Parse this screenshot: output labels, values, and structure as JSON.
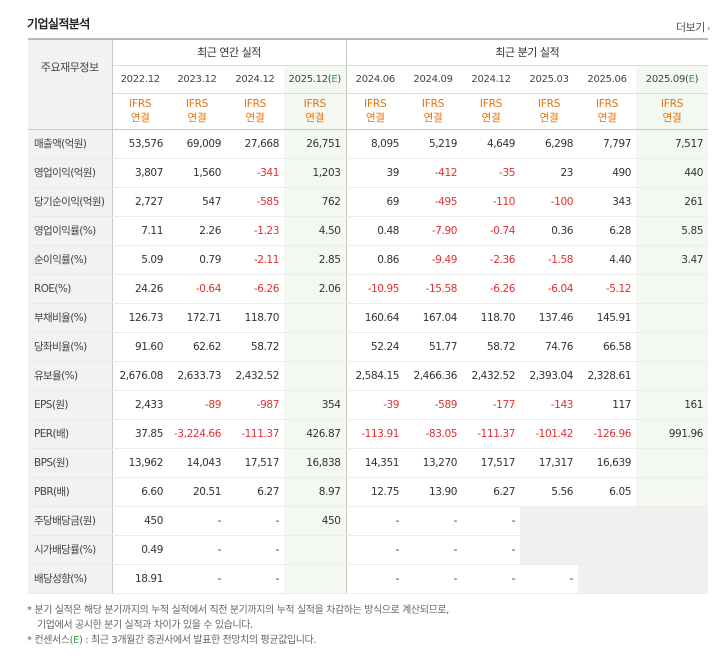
{
  "section_title": "기업실적분석",
  "more_label": "더보기",
  "more_arrow": "›",
  "header": {
    "row_head": "주요재무정보",
    "annual_group": "최근 연간 실적",
    "quarter_group": "최근 분기 실적"
  },
  "periods": [
    {
      "label": "2022.12",
      "est": false,
      "ifrs": "IFRS",
      "basis": "연결"
    },
    {
      "label": "2023.12",
      "est": false,
      "ifrs": "IFRS",
      "basis": "연결"
    },
    {
      "label": "2024.12",
      "est": false,
      "ifrs": "IFRS",
      "basis": "연결"
    },
    {
      "label": "2025.12(E)",
      "est": true,
      "ifrs": "IFRS",
      "basis": "연결"
    },
    {
      "label": "2024.06",
      "est": false,
      "ifrs": "IFRS",
      "basis": "연결"
    },
    {
      "label": "2024.09",
      "est": false,
      "ifrs": "IFRS",
      "basis": "연결"
    },
    {
      "label": "2024.12",
      "est": false,
      "ifrs": "IFRS",
      "basis": "연결"
    },
    {
      "label": "2025.03",
      "est": false,
      "ifrs": "IFRS",
      "basis": "연결"
    },
    {
      "label": "2025.06",
      "est": false,
      "ifrs": "IFRS",
      "basis": "연결"
    },
    {
      "label": "2025.09(E)",
      "est": true,
      "ifrs": "IFRS",
      "basis": "연결"
    }
  ],
  "rows": [
    {
      "label": "매출액(억원)",
      "group_start": true,
      "values": [
        "53,576",
        "69,009",
        "27,668",
        "26,751",
        "8,095",
        "5,219",
        "4,649",
        "6,298",
        "7,797",
        "7,517"
      ]
    },
    {
      "label": "영업이익(억원)",
      "group_start": false,
      "values": [
        "3,807",
        "1,560",
        "-341",
        "1,203",
        "39",
        "-412",
        "-35",
        "23",
        "490",
        "440"
      ]
    },
    {
      "label": "당기순이익(억원)",
      "group_start": false,
      "values": [
        "2,727",
        "547",
        "-585",
        "762",
        "69",
        "-495",
        "-110",
        "-100",
        "343",
        "261"
      ]
    },
    {
      "label": "영업이익률(%)",
      "group_start": true,
      "values": [
        "7.11",
        "2.26",
        "-1.23",
        "4.50",
        "0.48",
        "-7.90",
        "-0.74",
        "0.36",
        "6.28",
        "5.85"
      ]
    },
    {
      "label": "순이익률(%)",
      "group_start": false,
      "values": [
        "5.09",
        "0.79",
        "-2.11",
        "2.85",
        "0.86",
        "-9.49",
        "-2.36",
        "-1.58",
        "4.40",
        "3.47"
      ]
    },
    {
      "label": "ROE(%)",
      "group_start": false,
      "values": [
        "24.26",
        "-0.64",
        "-6.26",
        "2.06",
        "-10.95",
        "-15.58",
        "-6.26",
        "-6.04",
        "-5.12",
        ""
      ]
    },
    {
      "label": "부채비율(%)",
      "group_start": true,
      "values": [
        "126.73",
        "172.71",
        "118.70",
        "",
        "160.64",
        "167.04",
        "118.70",
        "137.46",
        "145.91",
        ""
      ]
    },
    {
      "label": "당좌비율(%)",
      "group_start": false,
      "values": [
        "91.60",
        "62.62",
        "58.72",
        "",
        "52.24",
        "51.77",
        "58.72",
        "74.76",
        "66.58",
        ""
      ]
    },
    {
      "label": "유보율(%)",
      "group_start": false,
      "values": [
        "2,676.08",
        "2,633.73",
        "2,432.52",
        "",
        "2,584.15",
        "2,466.36",
        "2,432.52",
        "2,393.04",
        "2,328.61",
        ""
      ]
    },
    {
      "label": "EPS(원)",
      "group_start": true,
      "values": [
        "2,433",
        "-89",
        "-987",
        "354",
        "-39",
        "-589",
        "-177",
        "-143",
        "117",
        "161"
      ]
    },
    {
      "label": "PER(배)",
      "group_start": false,
      "values": [
        "37.85",
        "-3,224.66",
        "-111.37",
        "426.87",
        "-113.91",
        "-83.05",
        "-111.37",
        "-101.42",
        "-126.96",
        "991.96"
      ]
    },
    {
      "label": "BPS(원)",
      "group_start": false,
      "values": [
        "13,962",
        "14,043",
        "17,517",
        "16,838",
        "14,351",
        "13,270",
        "17,517",
        "17,317",
        "16,639",
        ""
      ]
    },
    {
      "label": "PBR(배)",
      "group_start": false,
      "values": [
        "6.60",
        "20.51",
        "6.27",
        "8.97",
        "12.75",
        "13.90",
        "6.27",
        "5.56",
        "6.05",
        ""
      ]
    },
    {
      "label": "주당배당금(원)",
      "group_start": true,
      "values": [
        "450",
        "-",
        "-",
        "450",
        "-",
        "-",
        "-",
        "",
        "",
        ""
      ],
      "shaded": [
        7,
        8,
        9
      ]
    },
    {
      "label": "시가배당률(%)",
      "group_start": false,
      "values": [
        "0.49",
        "-",
        "-",
        "",
        "-",
        "-",
        "-",
        "",
        "",
        ""
      ],
      "shaded": [
        7,
        8,
        9
      ]
    },
    {
      "label": "배당성향(%)",
      "group_start": false,
      "values": [
        "18.91",
        "-",
        "-",
        "",
        "-",
        "-",
        "-",
        "-",
        "",
        ""
      ],
      "shaded": [
        8,
        9
      ]
    }
  ],
  "notes": {
    "line1": "분기 실적은 해당 분기까지의 누적 실적에서 직전 분기까지의 누적 실적을 차감하는 방식으로 계산되므로,",
    "line2": "기업에서 공시한 분기 실적과 차이가 있을 수 있습니다.",
    "line3_prefix": "컨센서스(",
    "line3_e": "E",
    "line3_suffix": ") : 최근 3개월간 증권사에서 발표한 전망치의 평균값입니다."
  }
}
